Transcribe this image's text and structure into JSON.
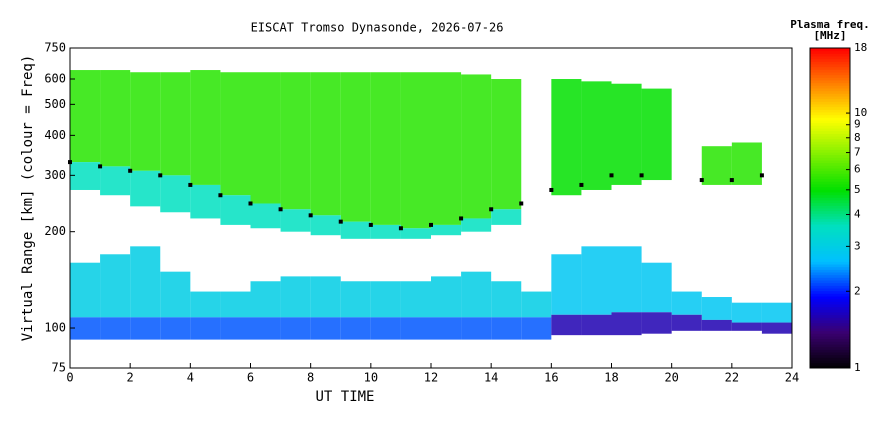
{
  "chart_data": {
    "type": "ionogram",
    "title": "EISCAT Tromso Dynasonde, 2026-07-26",
    "x_label": "UT TIME",
    "y_label": "Virtual Range [km] (colour = Freq)",
    "colorbar_title": [
      "Plasma freq.",
      "[MHz]"
    ],
    "xlim": [
      0,
      24
    ],
    "xticks": [
      0,
      2,
      4,
      6,
      8,
      10,
      12,
      14,
      16,
      18,
      20,
      22,
      24
    ],
    "ylim": [
      75,
      750
    ],
    "yticks": [
      75,
      100,
      200,
      300,
      400,
      500,
      600,
      750
    ],
    "ylog": true,
    "clim": [
      1,
      18
    ],
    "cticks": [
      1,
      2,
      3,
      4,
      5,
      6,
      7,
      8,
      9,
      10,
      18
    ],
    "clog": true,
    "colormap": [
      "#000000",
      "#3a0070",
      "#0000ff",
      "#00c0ff",
      "#00e0c0",
      "#00e000",
      "#80f000",
      "#ffff00",
      "#ff8000",
      "#ff0000"
    ],
    "bands": [
      {
        "x": [
          0,
          1,
          2,
          3,
          4,
          5,
          6,
          7,
          8,
          9,
          10,
          11,
          12,
          13,
          14
        ],
        "bottom": [
          330,
          320,
          310,
          300,
          280,
          260,
          245,
          235,
          225,
          215,
          210,
          205,
          210,
          220,
          235
        ],
        "top": [
          640,
          640,
          630,
          630,
          640,
          630,
          630,
          630,
          630,
          630,
          630,
          630,
          630,
          620,
          600
        ],
        "freq": 5.5
      },
      {
        "x": [
          0,
          1,
          2,
          3,
          4,
          5,
          6,
          7,
          8,
          9,
          10,
          11,
          12,
          13,
          14
        ],
        "bottom": [
          270,
          260,
          240,
          230,
          220,
          210,
          205,
          200,
          195,
          190,
          190,
          190,
          195,
          200,
          210
        ],
        "top": [
          330,
          320,
          310,
          300,
          280,
          260,
          245,
          235,
          225,
          215,
          210,
          205,
          210,
          220,
          235
        ],
        "freq": 3.6
      },
      {
        "x": [
          0,
          1,
          2,
          3,
          4,
          5,
          6,
          7,
          8,
          9,
          10,
          11,
          12,
          13,
          14,
          15
        ],
        "bottom": [
          108,
          108,
          108,
          108,
          108,
          108,
          108,
          108,
          108,
          108,
          108,
          108,
          108,
          108,
          108,
          108
        ],
        "top": [
          160,
          170,
          180,
          150,
          130,
          130,
          140,
          145,
          145,
          140,
          140,
          140,
          145,
          150,
          140,
          130
        ],
        "freq": 3.0
      },
      {
        "x": [
          0,
          1,
          2,
          3,
          4,
          5,
          6,
          7,
          8,
          9,
          10,
          11,
          12,
          13,
          14,
          15
        ],
        "bottom": [
          92,
          92,
          92,
          92,
          92,
          92,
          92,
          92,
          92,
          92,
          92,
          92,
          92,
          92,
          92,
          92
        ],
        "top": [
          108,
          108,
          108,
          108,
          108,
          108,
          108,
          108,
          108,
          108,
          108,
          108,
          108,
          108,
          108,
          108
        ],
        "freq": 2.2
      },
      {
        "x": [
          16,
          17,
          18,
          19
        ],
        "bottom": [
          260,
          270,
          280,
          290
        ],
        "top": [
          600,
          590,
          580,
          560
        ],
        "freq": 5
      },
      {
        "x": [
          21,
          22
        ],
        "bottom": [
          280,
          280
        ],
        "top": [
          370,
          380
        ],
        "freq": 5.5
      },
      {
        "x": [
          16,
          17,
          18,
          19,
          20,
          21,
          22,
          23
        ],
        "bottom": [
          110,
          110,
          112,
          112,
          110,
          106,
          104,
          104
        ],
        "top": [
          170,
          180,
          180,
          160,
          130,
          125,
          120,
          120
        ],
        "freq": 2.8
      },
      {
        "x": [
          16,
          17,
          18,
          19,
          20,
          21,
          22,
          23
        ],
        "bottom": [
          95,
          95,
          95,
          96,
          98,
          98,
          98,
          96
        ],
        "top": [
          110,
          110,
          112,
          112,
          110,
          106,
          104,
          104
        ],
        "freq": 1.6
      }
    ],
    "trace": {
      "x": [
        0,
        1,
        2,
        3,
        4,
        5,
        6,
        7,
        8,
        9,
        10,
        11,
        12,
        13,
        14,
        15,
        16,
        17,
        18,
        19,
        20,
        21,
        22,
        23
      ],
      "values": [
        330,
        320,
        310,
        300,
        280,
        260,
        245,
        235,
        225,
        215,
        210,
        205,
        210,
        220,
        235,
        245,
        270,
        280,
        300,
        300,
        null,
        290,
        290,
        300
      ]
    }
  }
}
